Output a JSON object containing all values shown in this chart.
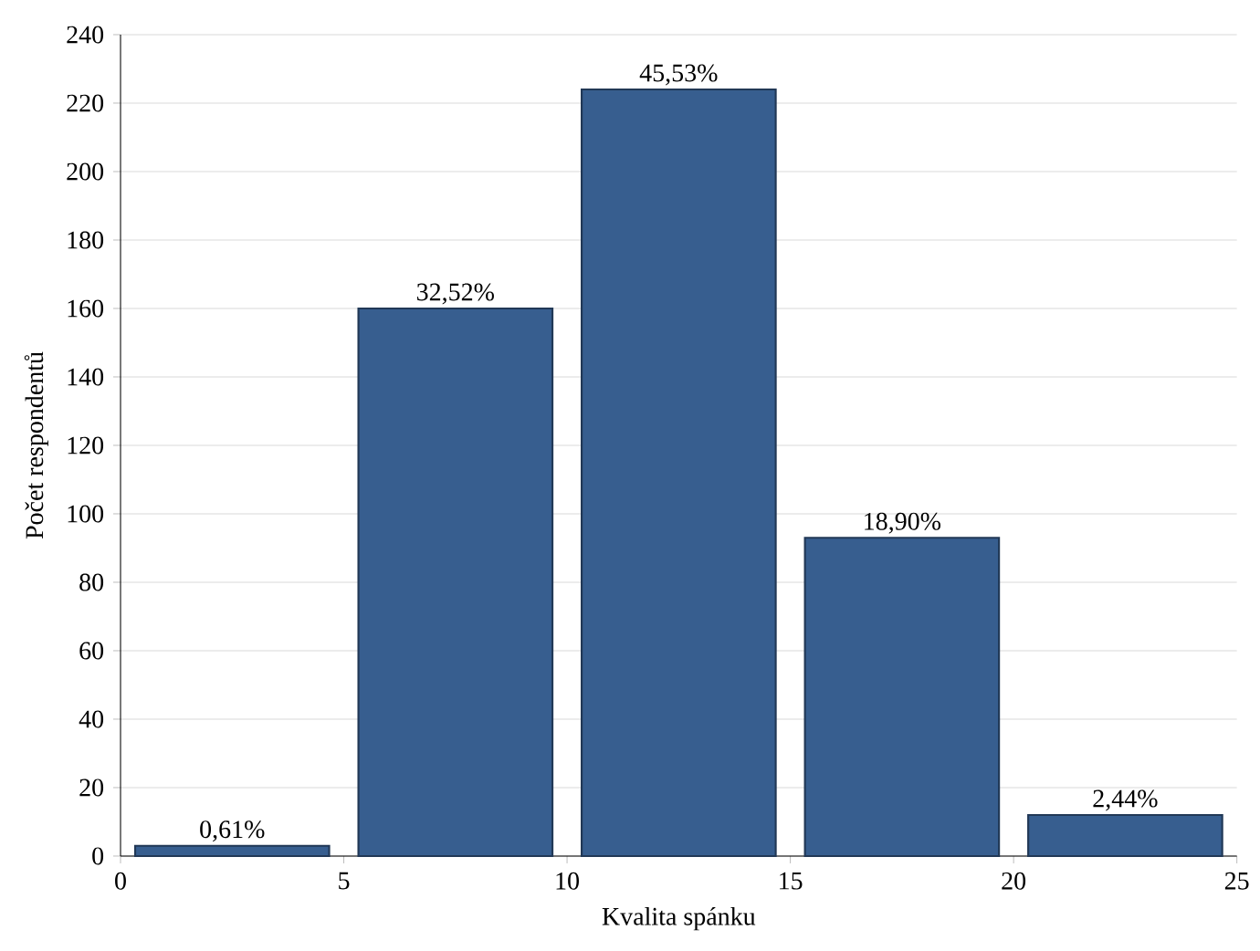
{
  "chart_data": {
    "type": "histogram",
    "xlabel": "Kvalita spánku",
    "ylabel": "Počet respondentů",
    "bins": [
      0,
      5,
      10,
      15,
      20,
      25
    ],
    "values": [
      3,
      160,
      224,
      93,
      12
    ],
    "annotations": [
      {
        "text": "0,61%",
        "x": 2.5,
        "y": 3
      },
      {
        "text": "32,52%",
        "x": 7.5,
        "y": 160
      },
      {
        "text": "45,53%",
        "x": 12.5,
        "y": 224
      },
      {
        "text": "18,90%",
        "x": 17.5,
        "y": 93
      },
      {
        "text": "2,44%",
        "x": 22.5,
        "y": 12
      }
    ],
    "color": "#375e8f",
    "xlim": [
      0,
      25
    ],
    "xticks": [
      0,
      5,
      10,
      15,
      20,
      25
    ],
    "ylim": [
      0,
      240
    ],
    "yticks": [
      0,
      20,
      40,
      60,
      80,
      100,
      120,
      140,
      160,
      180,
      200,
      220,
      240
    ],
    "grid": "y"
  }
}
